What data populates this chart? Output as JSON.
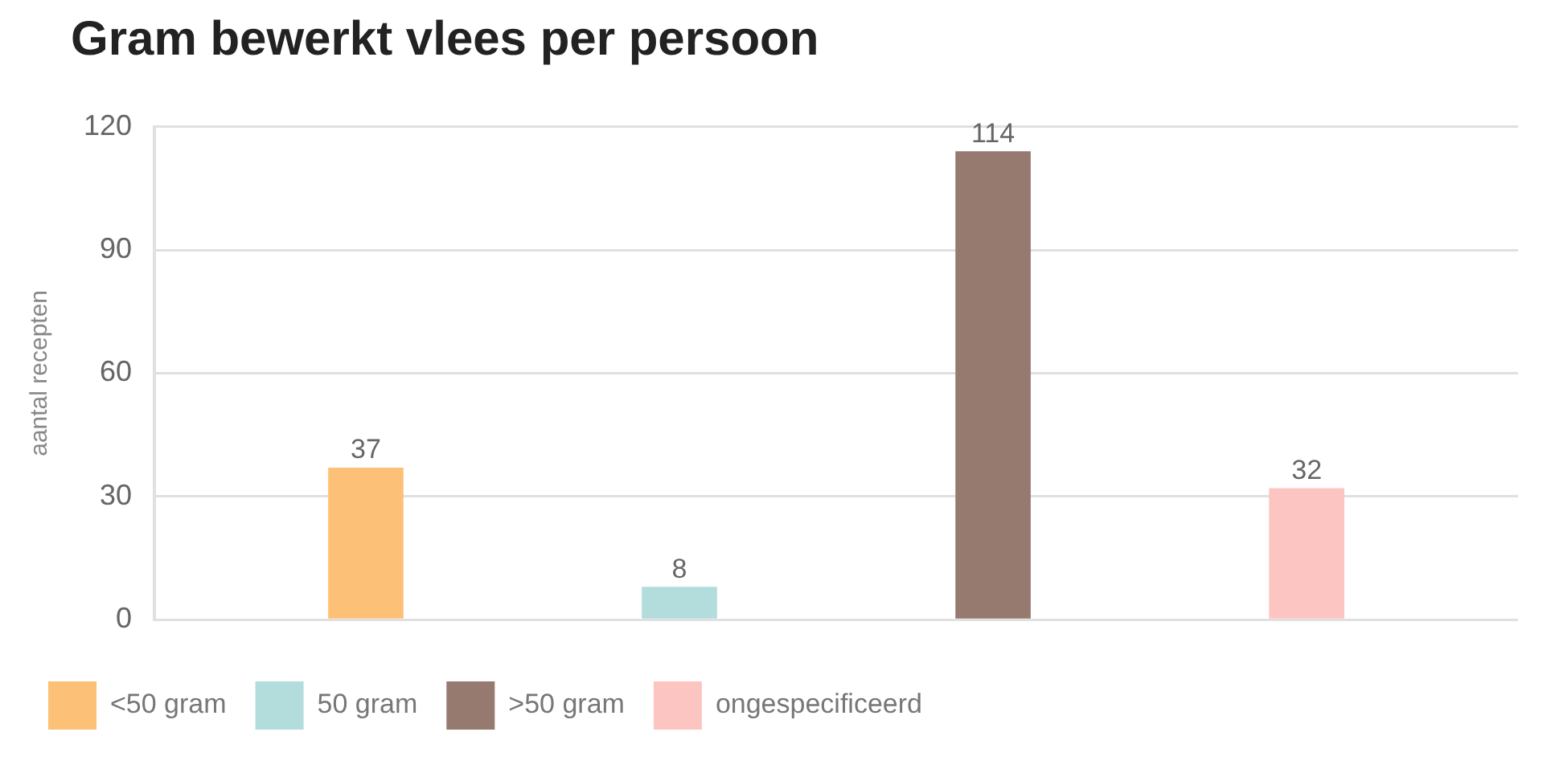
{
  "chart_data": {
    "type": "bar",
    "title": "Gram bewerkt vlees per persoon",
    "ylabel": "aantal recepten",
    "categories": [
      null
    ],
    "series": [
      {
        "name": "<50 gram",
        "color": "#fdc077",
        "values": [
          37
        ]
      },
      {
        "name": "50 gram",
        "color": "#b3dcdc",
        "values": [
          8
        ]
      },
      {
        "name": ">50 gram",
        "color": "#96796f",
        "values": [
          114
        ]
      },
      {
        "name": "ongespecificeerd",
        "color": "#fcc5c2",
        "values": [
          32
        ]
      }
    ],
    "ylim": [
      0,
      120
    ],
    "yticks": [
      0,
      30,
      60,
      90,
      120
    ],
    "grid": "y",
    "legend": "bottom",
    "data_labels": true
  }
}
